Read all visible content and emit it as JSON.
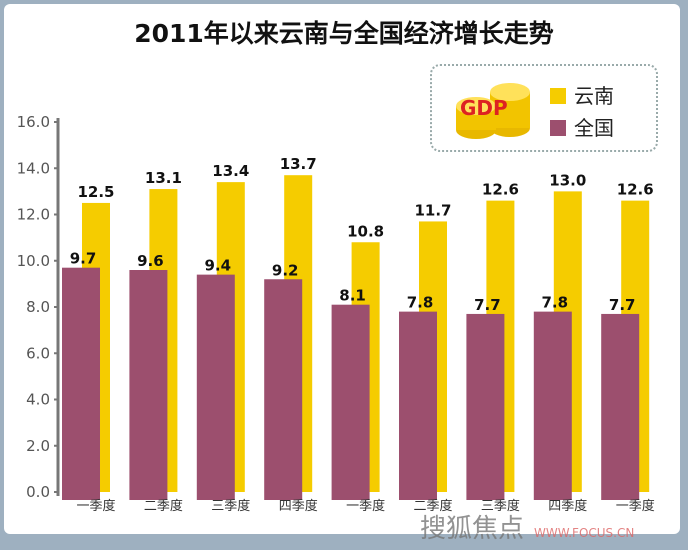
{
  "chart_data": {
    "type": "bar",
    "title": "2011年以来云南与全国经济增长走势",
    "categories": [
      "一季度",
      "二季度",
      "三季度",
      "四季度",
      "一季度",
      "二季度",
      "三季度",
      "四季度",
      "一季度"
    ],
    "series": [
      {
        "name": "云南",
        "color": "#f5cc00",
        "values": [
          12.5,
          13.1,
          13.4,
          13.7,
          10.8,
          11.7,
          12.6,
          13.0,
          12.6
        ]
      },
      {
        "name": "全国",
        "color": "#9c4f6e",
        "values": [
          9.7,
          9.6,
          9.4,
          9.2,
          8.1,
          7.8,
          7.7,
          7.8,
          7.7
        ]
      }
    ],
    "ylim": [
      0,
      16
    ],
    "yticks": [
      "0.0",
      "2.0",
      "4.0",
      "6.0",
      "8.0",
      "10.0",
      "12.0",
      "14.0",
      "16.0"
    ],
    "legend_placement": "top-right",
    "legend_badge": "GDP"
  },
  "watermark": {
    "name": "搜狐焦点",
    "url": "WWW.FOCUS.CN"
  }
}
